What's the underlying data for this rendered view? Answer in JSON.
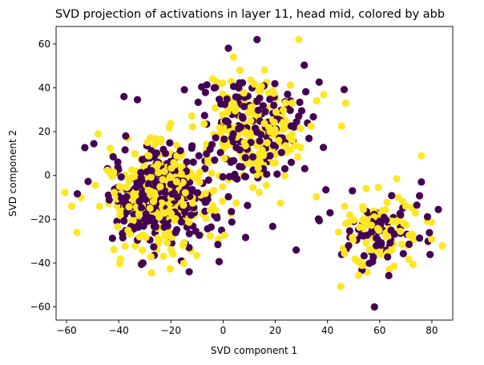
{
  "chart_data": {
    "type": "scatter",
    "title": "SVD projection of activations in layer 11, head mid, colored by abb",
    "xlabel": "SVD component 1",
    "ylabel": "SVD component 2",
    "xlim": [
      -64,
      88
    ],
    "ylim": [
      -66,
      68
    ],
    "xticks": [
      -60,
      -40,
      -20,
      0,
      20,
      40,
      60,
      80
    ],
    "yticks": [
      -60,
      -40,
      -20,
      0,
      20,
      40,
      60
    ],
    "grid": false,
    "colors": {
      "purple": "#440154",
      "yellow": "#fde725"
    },
    "clusters": [
      {
        "name": "left cluster",
        "cx": -24,
        "cy": -10,
        "sx": 10.5,
        "sy": 13,
        "n": 520
      },
      {
        "name": "middle cluster",
        "cx": 12,
        "cy": 20,
        "sx": 11,
        "sy": 13,
        "n": 330
      },
      {
        "name": "right cluster",
        "cx": 60,
        "cy": -26,
        "sx": 9.5,
        "sy": 9,
        "n": 170
      }
    ],
    "series": [
      {
        "name": "purple",
        "color": "#440154",
        "points": [
          [
            13,
            62
          ],
          [
            -38,
            36
          ],
          [
            28,
            -34
          ],
          [
            76,
            -3
          ],
          [
            68,
            -18
          ],
          [
            58,
            -60
          ],
          [
            41,
            -17
          ],
          [
            6,
            40
          ],
          [
            3,
            6
          ],
          [
            18,
            9
          ],
          [
            -5,
            12
          ],
          [
            -24,
            -4
          ],
          [
            -30,
            -20
          ],
          [
            -16,
            -39
          ]
        ]
      },
      {
        "name": "yellow",
        "color": "#fde725",
        "points": [
          [
            -58,
            -14
          ],
          [
            -56,
            -26
          ],
          [
            29,
            62
          ],
          [
            4,
            54
          ],
          [
            -4,
            44
          ],
          [
            47,
            33
          ],
          [
            76,
            9
          ],
          [
            60,
            -34
          ],
          [
            47,
            -22
          ],
          [
            55,
            -20
          ],
          [
            18,
            20
          ],
          [
            -20,
            -10
          ],
          [
            -32,
            -28
          ],
          [
            -28,
            -15
          ]
        ]
      }
    ]
  }
}
